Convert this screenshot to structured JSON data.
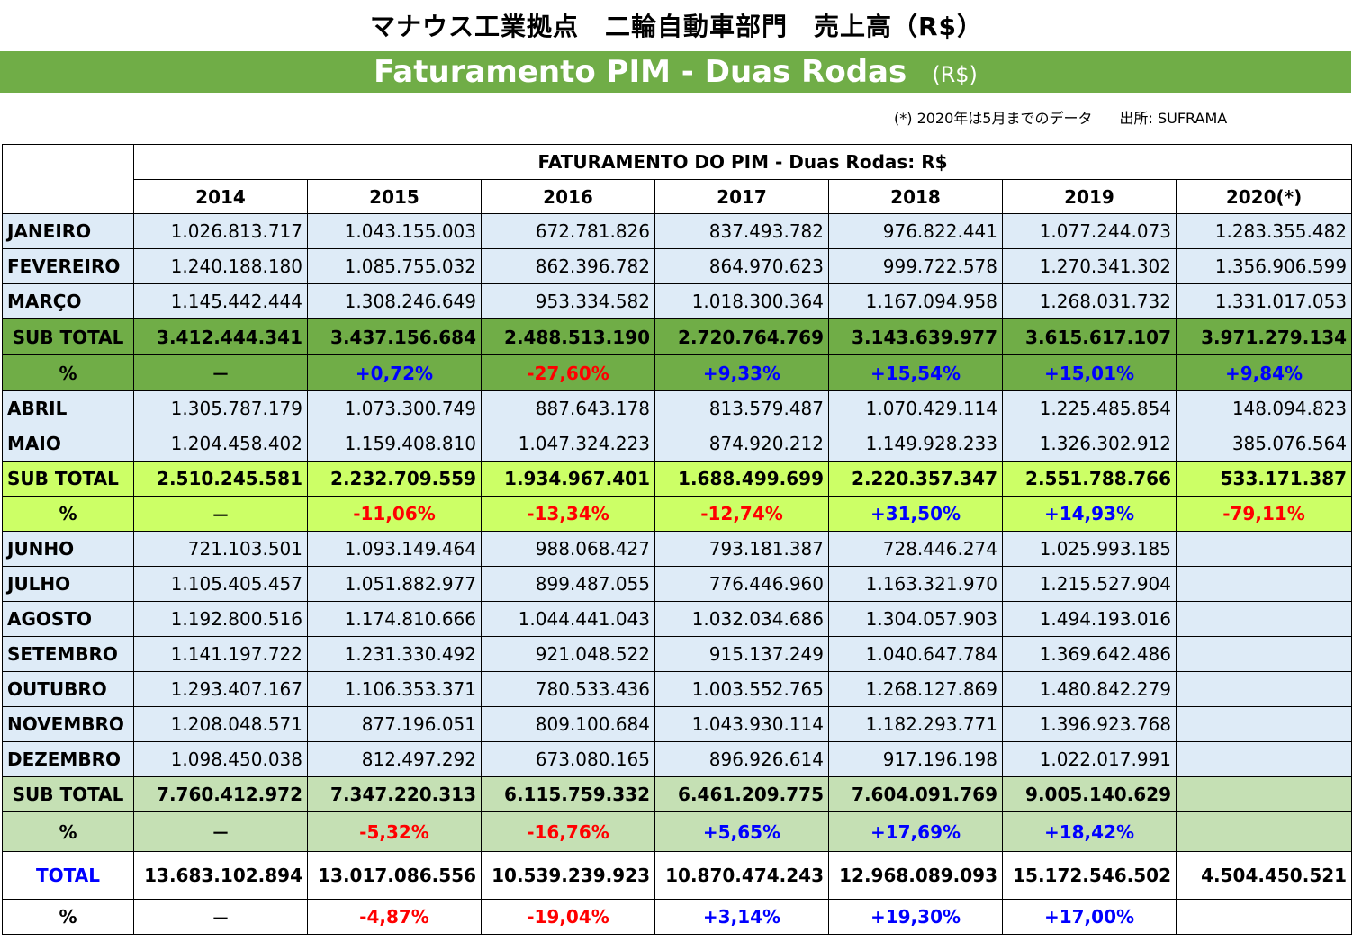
{
  "title_jp": "マナウス工業拠点　二輪自動車部門　売上高（R$）",
  "banner": {
    "main": "Faturamento PIM - Duas Rodas",
    "unit": "(R$)"
  },
  "note": {
    "left": "(*) 2020年は5月までのデータ",
    "source": "出所: SUFRAMA"
  },
  "table": {
    "title": "FATURAMENTO DO PIM - Duas Rodas:   R$",
    "years": [
      "2014",
      "2015",
      "2016",
      "2017",
      "2018",
      "2019",
      "2020(*)"
    ],
    "rows": [
      {
        "label": "JANEIRO",
        "values": [
          "1.026.813.717",
          "1.043.155.003",
          "672.781.826",
          "837.493.782",
          "976.822.441",
          "1.077.244.073",
          "1.283.355.482"
        ]
      },
      {
        "label": "FEVEREIRO",
        "values": [
          "1.240.188.180",
          "1.085.755.032",
          "862.396.782",
          "864.970.623",
          "999.722.578",
          "1.270.341.302",
          "1.356.906.599"
        ]
      },
      {
        "label": "MARÇO",
        "values": [
          "1.145.442.444",
          "1.308.246.649",
          "953.334.582",
          "1.018.300.364",
          "1.167.094.958",
          "1.268.031.732",
          "1.331.017.053"
        ]
      },
      {
        "label": "SUB TOTAL",
        "values": [
          "3.412.444.341",
          "3.437.156.684",
          "2.488.513.190",
          "2.720.764.769",
          "3.143.639.977",
          "3.615.617.107",
          "3.971.279.134"
        ]
      },
      {
        "label": "%",
        "values": [
          "－",
          "+0,72%",
          "-27,60%",
          "+9,33%",
          "+15,54%",
          "+15,01%",
          "+9,84%"
        ]
      },
      {
        "label": "ABRIL",
        "values": [
          "1.305.787.179",
          "1.073.300.749",
          "887.643.178",
          "813.579.487",
          "1.070.429.114",
          "1.225.485.854",
          "148.094.823"
        ]
      },
      {
        "label": "MAIO",
        "values": [
          "1.204.458.402",
          "1.159.408.810",
          "1.047.324.223",
          "874.920.212",
          "1.149.928.233",
          "1.326.302.912",
          "385.076.564"
        ]
      },
      {
        "label": "SUB TOTAL",
        "values": [
          "2.510.245.581",
          "2.232.709.559",
          "1.934.967.401",
          "1.688.499.699",
          "2.220.357.347",
          "2.551.788.766",
          "533.171.387"
        ]
      },
      {
        "label": "%",
        "values": [
          "－",
          "-11,06%",
          "-13,34%",
          "-12,74%",
          "+31,50%",
          "+14,93%",
          "-79,11%"
        ]
      },
      {
        "label": "JUNHO",
        "values": [
          "721.103.501",
          "1.093.149.464",
          "988.068.427",
          "793.181.387",
          "728.446.274",
          "1.025.993.185",
          ""
        ]
      },
      {
        "label": "JULHO",
        "values": [
          "1.105.405.457",
          "1.051.882.977",
          "899.487.055",
          "776.446.960",
          "1.163.321.970",
          "1.215.527.904",
          ""
        ]
      },
      {
        "label": "AGOSTO",
        "values": [
          "1.192.800.516",
          "1.174.810.666",
          "1.044.441.043",
          "1.032.034.686",
          "1.304.057.903",
          "1.494.193.016",
          ""
        ]
      },
      {
        "label": "SETEMBRO",
        "values": [
          "1.141.197.722",
          "1.231.330.492",
          "921.048.522",
          "915.137.249",
          "1.040.647.784",
          "1.369.642.486",
          ""
        ]
      },
      {
        "label": "OUTUBRO",
        "values": [
          "1.293.407.167",
          "1.106.353.371",
          "780.533.436",
          "1.003.552.765",
          "1.268.127.869",
          "1.480.842.279",
          ""
        ]
      },
      {
        "label": "NOVEMBRO",
        "values": [
          "1.208.048.571",
          "877.196.051",
          "809.100.684",
          "1.043.930.114",
          "1.182.293.771",
          "1.396.923.768",
          ""
        ]
      },
      {
        "label": "DEZEMBRO",
        "values": [
          "1.098.450.038",
          "812.497.292",
          "673.080.165",
          "896.926.614",
          "917.196.198",
          "1.022.017.991",
          ""
        ]
      },
      {
        "label": "SUB TOTAL",
        "values": [
          "7.760.412.972",
          "7.347.220.313",
          "6.115.759.332",
          "6.461.209.775",
          "7.604.091.769",
          "9.005.140.629",
          ""
        ]
      },
      {
        "label": "%",
        "values": [
          "－",
          "-5,32%",
          "-16,76%",
          "+5,65%",
          "+17,69%",
          "+18,42%",
          ""
        ]
      },
      {
        "label": "TOTAL",
        "values": [
          "13.683.102.894",
          "13.017.086.556",
          "10.539.239.923",
          "10.870.474.243",
          "12.968.089.093",
          "15.172.546.502",
          "4.504.450.521"
        ]
      },
      {
        "label": "%",
        "values": [
          "－",
          "-4,87%",
          "-19,04%",
          "+3,14%",
          "+19,30%",
          "+17,00%",
          ""
        ]
      }
    ]
  },
  "colors": {
    "banner": "#70ad47",
    "month_row": "#deebf7",
    "subtotal_q1": "#70ad47",
    "subtotal_q2": "#ccff66",
    "subtotal_rest": "#c5e0b4",
    "negative": "#ff0000",
    "positive": "#0000ff",
    "total_label": "#0000ff"
  }
}
